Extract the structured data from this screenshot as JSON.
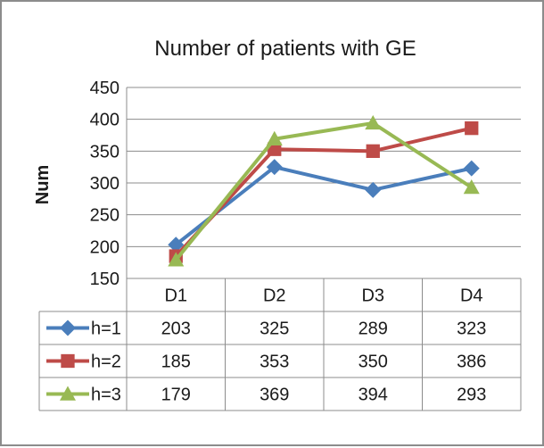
{
  "chart_data": {
    "type": "line",
    "title": "Number of patients with GE",
    "xlabel": "",
    "ylabel": "Num",
    "categories": [
      "D1",
      "D2",
      "D3",
      "D4"
    ],
    "ylim": [
      150,
      450
    ],
    "yticks": [
      150,
      200,
      250,
      300,
      350,
      400,
      450
    ],
    "grid": true,
    "legend": "data table rows below plot",
    "series": [
      {
        "name": "h=1",
        "values": [
          203,
          325,
          289,
          323
        ],
        "color": "#4a7ebb",
        "marker": "diamond"
      },
      {
        "name": "h=2",
        "values": [
          185,
          353,
          350,
          386
        ],
        "color": "#be4b48",
        "marker": "square"
      },
      {
        "name": "h=3",
        "values": [
          179,
          369,
          394,
          293
        ],
        "color": "#98b954",
        "marker": "triangle"
      }
    ]
  }
}
